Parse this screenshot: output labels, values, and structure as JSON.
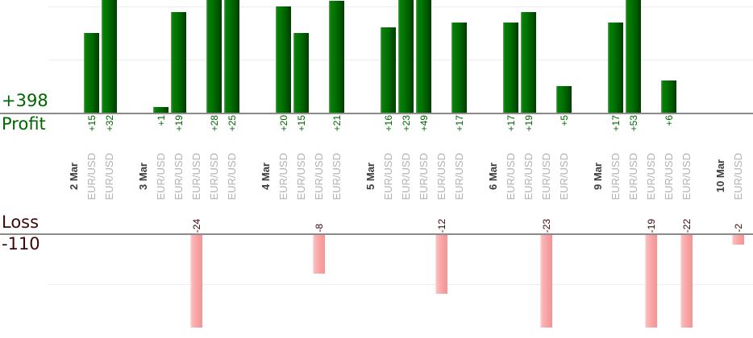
{
  "chart_data": {
    "type": "bar",
    "description": "Profit and loss per trade grouped by date; profit bars point up from the upper axis, loss bars point down from the lower axis",
    "profit_section": {
      "summary_value": "+398",
      "label": "Profit",
      "gridline_values": [
        10,
        20
      ],
      "visible_axis_clip": 21.4
    },
    "loss_section": {
      "summary_value": "-110",
      "label": "Loss",
      "gridline_values": [
        -10
      ],
      "visible_axis_clip": -19
    },
    "colors": {
      "profit_bar": "#007400",
      "profit_text": "#006600",
      "loss_bar": "#f9a8a8",
      "loss_text": "#3f0707",
      "date_text": "#3b3b3b",
      "symbol_text": "#b2b2b2",
      "axis_line": "#8a8a8a",
      "gridline": "#ededed"
    },
    "groups": [
      {
        "date": "2 Mar",
        "trades": [
          {
            "symbol": "EUR/USD",
            "value": 15,
            "label": "+15"
          },
          {
            "symbol": "EUR/USD",
            "value": 32,
            "label": "+32"
          }
        ]
      },
      {
        "date": "3 Mar",
        "trades": [
          {
            "symbol": "EUR/USD",
            "value": 1,
            "label": "+1"
          },
          {
            "symbol": "EUR/USD",
            "value": 19,
            "label": "+19"
          },
          {
            "symbol": "EUR/USD",
            "value": -24,
            "label": "-24"
          },
          {
            "symbol": "EUR/USD",
            "value": 28,
            "label": "+28"
          },
          {
            "symbol": "EUR/USD",
            "value": 25,
            "label": "+25"
          }
        ]
      },
      {
        "date": "4 Mar",
        "trades": [
          {
            "symbol": "EUR/USD",
            "value": 20,
            "label": "+20"
          },
          {
            "symbol": "EUR/USD",
            "value": 15,
            "label": "+15"
          },
          {
            "symbol": "EUR/USD",
            "value": -8,
            "label": "-8"
          },
          {
            "symbol": "EUR/USD",
            "value": 21,
            "label": "+21"
          }
        ]
      },
      {
        "date": "5 Mar",
        "trades": [
          {
            "symbol": "EUR/USD",
            "value": 16,
            "label": "+16"
          },
          {
            "symbol": "EUR/USD",
            "value": 23,
            "label": "+23"
          },
          {
            "symbol": "EUR/USD",
            "value": 49,
            "label": "+49"
          },
          {
            "symbol": "EUR/USD",
            "value": -12,
            "label": "-12"
          },
          {
            "symbol": "EUR/USD",
            "value": 17,
            "label": "+17"
          }
        ]
      },
      {
        "date": "6 Mar",
        "trades": [
          {
            "symbol": "EUR/USD",
            "value": 17,
            "label": "+17"
          },
          {
            "symbol": "EUR/USD",
            "value": 19,
            "label": "+19"
          },
          {
            "symbol": "EUR/USD",
            "value": -23,
            "label": "-23"
          },
          {
            "symbol": "EUR/USD",
            "value": 5,
            "label": "+5"
          }
        ]
      },
      {
        "date": "9 Mar",
        "trades": [
          {
            "symbol": "EUR/USD",
            "value": 17,
            "label": "+17"
          },
          {
            "symbol": "EUR/USD",
            "value": 53,
            "label": "+53"
          },
          {
            "symbol": "EUR/USD",
            "value": -19,
            "label": "-19"
          },
          {
            "symbol": "EUR/USD",
            "value": 6,
            "label": "+6"
          },
          {
            "symbol": "EUR/USD",
            "value": -22,
            "label": "-22"
          }
        ]
      },
      {
        "date": "10 Mar",
        "trades": [
          {
            "symbol": "EUR/USD",
            "value": -2,
            "label": "-2"
          }
        ]
      }
    ]
  }
}
